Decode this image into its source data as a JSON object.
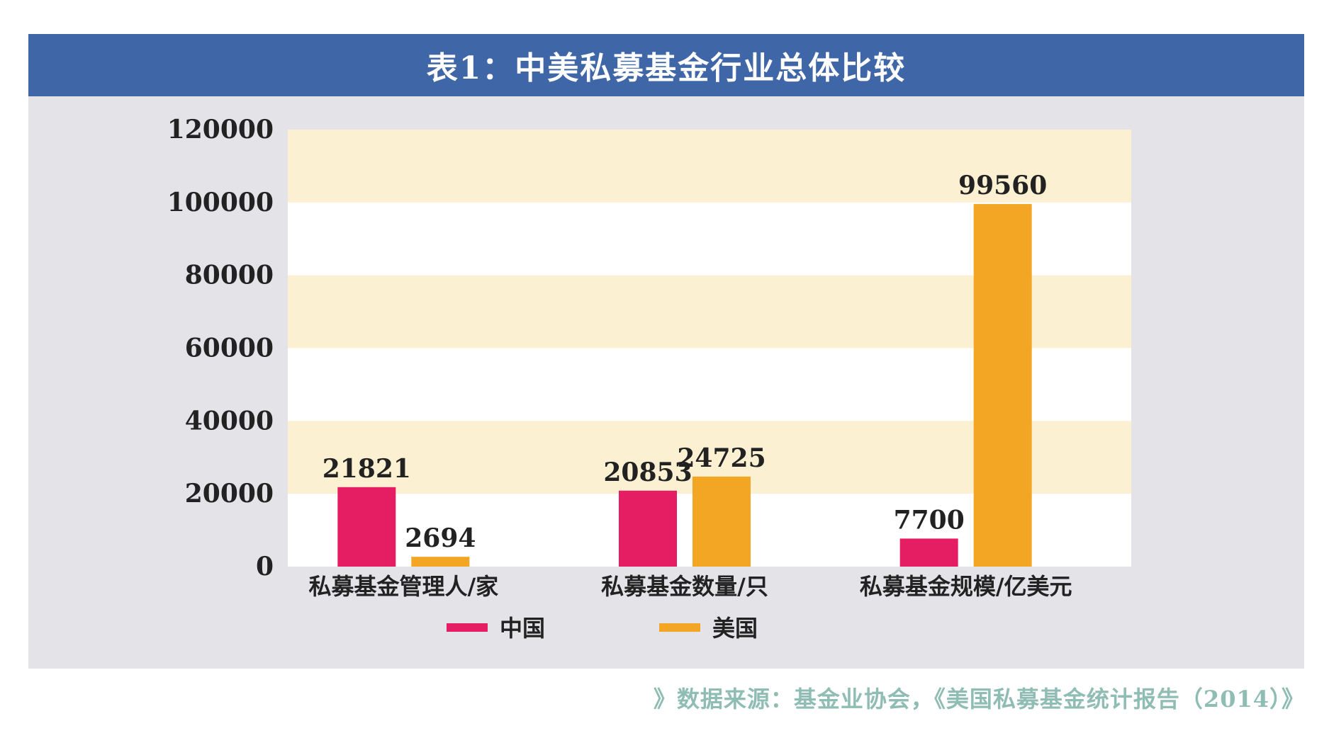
{
  "chart_data": {
    "type": "bar",
    "title": "表1：中美私募基金行业总体比较",
    "categories": [
      "私募基金管理人/家",
      "私募基金数量/只",
      "私募基金规模/亿美元"
    ],
    "series": [
      {
        "name": "中国",
        "values": [
          21821,
          20853,
          7700
        ],
        "color": "#e51e63"
      },
      {
        "name": "美国",
        "values": [
          2694,
          24725,
          99560
        ],
        "color": "#f2a623"
      }
    ],
    "data_labels": [
      [
        "21821",
        "20853",
        "7700"
      ],
      [
        "2694",
        "24725",
        "99560"
      ]
    ],
    "y_ticks": [
      "120000",
      "100000",
      "80000",
      "60000",
      "40000",
      "20000",
      "0"
    ],
    "ylim": [
      0,
      120000
    ],
    "xlabel": "",
    "ylabel": "",
    "legend_position": "bottom-center",
    "band_color": "#fcf0d2"
  },
  "source_note": "》数据来源：基金业协会，《美国私募基金统计报告（2014）》"
}
